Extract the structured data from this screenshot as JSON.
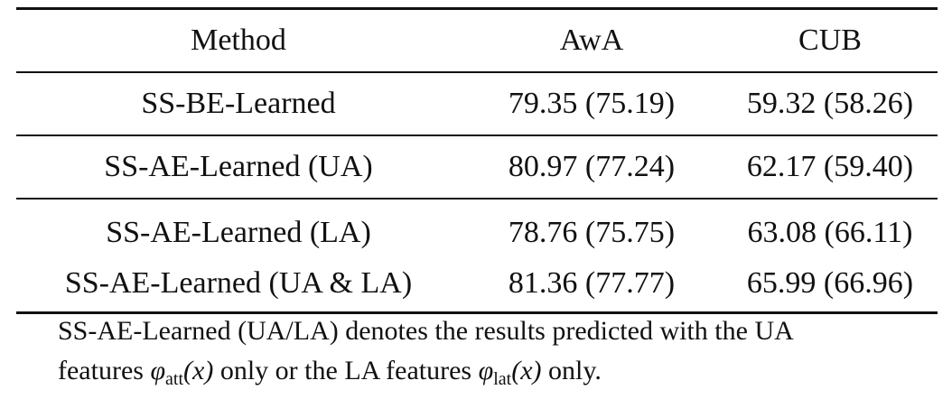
{
  "table": {
    "headers": [
      "Method",
      "AwA",
      "CUB"
    ],
    "rows": [
      {
        "method": "SS-BE-Learned",
        "awa": "79.35 (75.19)",
        "cub": "59.32 (58.26)"
      },
      {
        "method": "SS-AE-Learned (UA)",
        "awa": "80.97 (77.24)",
        "cub": "62.17 (59.40)"
      },
      {
        "method": "SS-AE-Learned (LA)",
        "awa": "78.76 (75.75)",
        "cub": "63.08 (66.11)"
      },
      {
        "method": "SS-AE-Learned (UA & LA)",
        "awa": "81.36 (77.77)",
        "cub": "65.99 (66.96)"
      }
    ]
  },
  "note": {
    "line1": "SS-AE-Learned (UA/LA) denotes the results predicted with the UA",
    "line2_prefix": "features ",
    "phi1_symbol": "φ",
    "phi1_sub": "att",
    "phi1_arg": "(x)",
    "line2_mid": " only or the LA features ",
    "phi2_symbol": "φ",
    "phi2_sub": "lat",
    "phi2_arg": "(x)",
    "line2_suffix": " only."
  }
}
